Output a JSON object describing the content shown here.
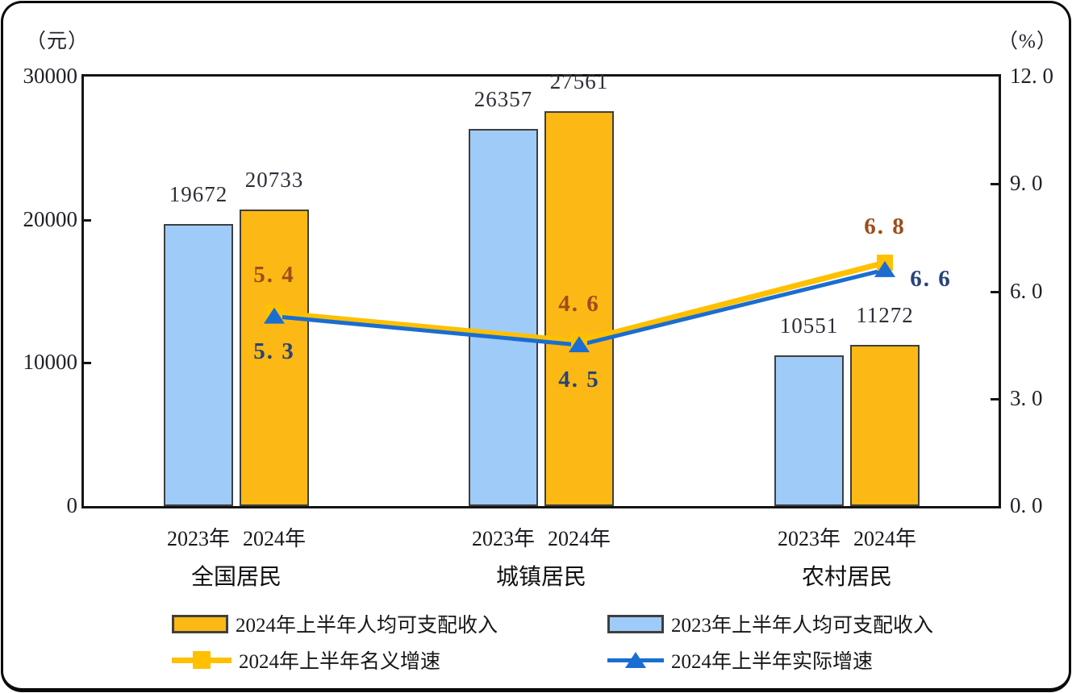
{
  "chart_data": {
    "type": "bar",
    "combo": "grouped bars with two overlay lines",
    "categories": [
      "全国居民",
      "城镇居民",
      "农村居民"
    ],
    "left_axis": {
      "unit": "（元）",
      "min": 0,
      "max": 30000,
      "ticks": [
        {
          "label": "30000",
          "value": 30000
        },
        {
          "label": "20000",
          "value": 20000
        },
        {
          "label": "10000",
          "value": 10000
        },
        {
          "label": "0",
          "value": 0
        }
      ]
    },
    "right_axis": {
      "unit": "（%）",
      "min": 0,
      "max": 12,
      "ticks": [
        {
          "label": "12. 0",
          "value": 12
        },
        {
          "label": "9. 0",
          "value": 9
        },
        {
          "label": "6. 0",
          "value": 6
        },
        {
          "label": "3. 0",
          "value": 3
        },
        {
          "label": "0. 0",
          "value": 0
        }
      ]
    },
    "bar_series": [
      {
        "name": "2023年上半年人均可支配收入",
        "year_label": "2023年",
        "color": "#9FCBF8",
        "border_color": "#3f3f3f",
        "values": [
          19672,
          26357,
          10551
        ]
      },
      {
        "name": "2024年上半年人均可支配收入",
        "year_label": "2024年",
        "color": "#FCB814",
        "border_color": "#3f3f3f",
        "values": [
          20733,
          27561,
          11272
        ]
      }
    ],
    "line_series": [
      {
        "name": "2024年上半年名义增速",
        "color": "#FFC000",
        "marker": "square",
        "label_color": "#9D4D1A",
        "values": [
          5.4,
          4.6,
          6.8
        ]
      },
      {
        "name": "2024年上半年实际增速",
        "color": "#1A6DD1",
        "marker": "triangle",
        "label_color": "#28437A",
        "values": [
          5.3,
          4.5,
          6.6
        ]
      }
    ],
    "value_label_color": "#2e2e38",
    "legend_position": "bottom"
  }
}
